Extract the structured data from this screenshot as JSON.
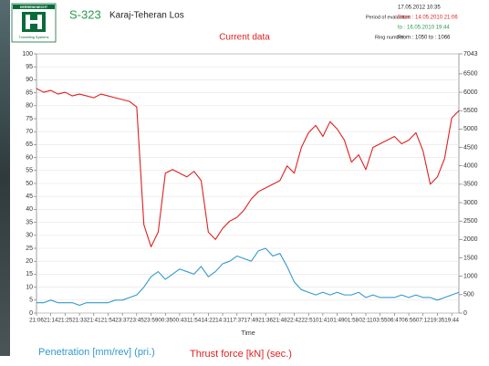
{
  "header": {
    "logo_name": "HERRENKNECHT",
    "logo_subtitle": "Tunnelling Systems",
    "project_code": "S-323",
    "project_name": "Karaj-Teheran Los",
    "report_date": "17.05.2012  10:35",
    "period_label": "Period of evaluation",
    "period_from": "From : 14.05.2010  21:06",
    "period_to": "to    : 16.05.2010  19:44",
    "ring_label": "Ring number",
    "ring_range": "From : 1050 to   : 1066"
  },
  "chart_data": {
    "type": "line",
    "title": "Current data",
    "x_label": "Time",
    "grid": true,
    "categories": [
      "21:06",
      null,
      "21:14",
      null,
      "21:25",
      null,
      "21:33",
      null,
      "21:41",
      null,
      "21:54",
      null,
      "23:37",
      null,
      "23:45",
      null,
      "23:59",
      null,
      "00:35",
      null,
      "00:43",
      null,
      "11:54",
      null,
      "14:22",
      null,
      "14:31",
      null,
      "17:37",
      null,
      "17:49",
      null,
      "21:36",
      null,
      "21:48",
      null,
      "22:42",
      null,
      "22:51",
      null,
      "01:41",
      null,
      "01:49",
      null,
      "01:58",
      null,
      "02:11",
      null,
      "03:55",
      null,
      "06:47",
      null,
      "06:56",
      null,
      "07:12",
      null,
      "19:35",
      null,
      "19:44",
      null
    ],
    "ylim": [
      0,
      100
    ],
    "yticks": [
      0,
      5,
      10,
      15,
      20,
      25,
      30,
      35,
      40,
      45,
      50,
      55,
      60,
      65,
      70,
      75,
      80,
      85,
      90,
      95,
      100
    ],
    "y2lim": [
      0,
      7043
    ],
    "y2ticks": [
      0,
      500,
      1000,
      1500,
      2000,
      2500,
      3000,
      3500,
      4000,
      4500,
      5000,
      5500,
      6000,
      6500,
      7043
    ],
    "series": [
      {
        "name": "Penetration [mm/rev] (pri.)",
        "color": "#3399cc",
        "values": [
          4,
          4,
          5,
          4,
          4,
          4,
          3,
          4,
          4,
          4,
          4,
          5,
          5,
          6,
          7,
          10,
          14,
          16,
          13,
          15,
          17,
          16,
          15,
          18,
          14,
          16,
          19,
          20,
          22,
          21,
          20,
          24,
          25,
          22,
          23,
          18,
          12,
          9,
          8,
          7,
          8,
          7,
          8,
          7,
          7,
          8,
          6,
          7,
          6,
          6,
          6,
          7,
          6,
          7,
          6,
          6,
          5,
          6,
          7,
          8
        ]
      },
      {
        "name": "Thrust force [kN] (sec.)",
        "color": "#e02020",
        "axis": "y2",
        "values": [
          6100,
          6000,
          6050,
          5950,
          6000,
          5900,
          5950,
          5900,
          5850,
          5950,
          5900,
          5850,
          5800,
          5750,
          5600,
          2400,
          1800,
          2200,
          3800,
          3900,
          3800,
          3700,
          3850,
          3600,
          2200,
          2000,
          2300,
          2500,
          2600,
          2800,
          3100,
          3300,
          3400,
          3500,
          3600,
          4000,
          3800,
          4500,
          4900,
          5100,
          4800,
          5200,
          5000,
          4700,
          4100,
          4300,
          3900,
          4500,
          4600,
          4700,
          4800,
          4600,
          4700,
          4900,
          4400,
          3500,
          3700,
          4200,
          5300,
          5500
        ]
      }
    ]
  }
}
